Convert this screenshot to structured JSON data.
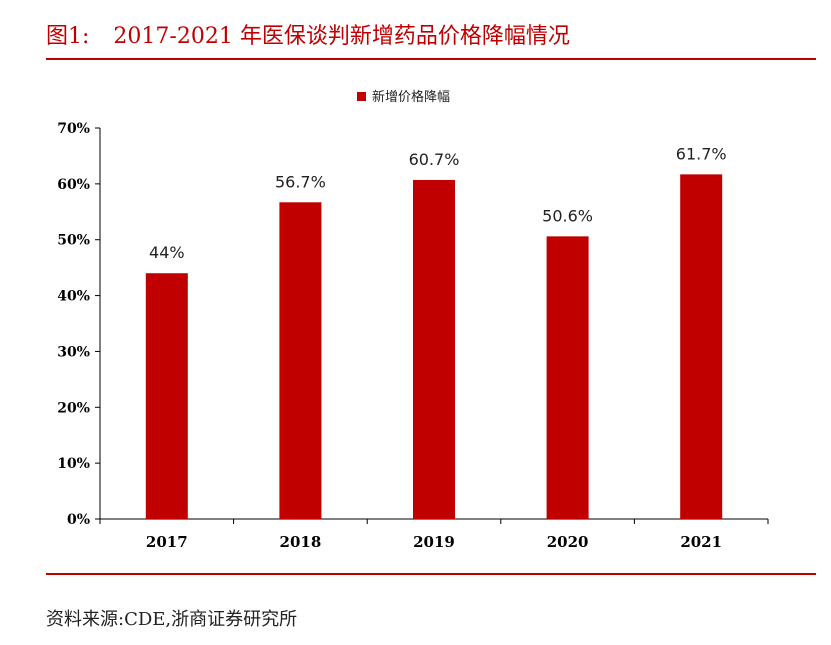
{
  "figure": {
    "label": "图1:",
    "title": "2017-2021 年医保谈判新增药品价格降幅情况"
  },
  "source_text": "资料来源:CDE,浙商证券研究所",
  "colors": {
    "accent": "#c00000",
    "bar": "#c00000",
    "axis": "#000000"
  },
  "chart_data": {
    "type": "bar",
    "title": "2017-2021 年医保谈判新增药品价格降幅情况",
    "xlabel": "",
    "ylabel": "",
    "categories": [
      "2017",
      "2018",
      "2019",
      "2020",
      "2021"
    ],
    "series": [
      {
        "name": "新增价格降幅",
        "values": [
          44,
          56.7,
          60.7,
          50.6,
          61.7
        ],
        "labels": [
          "44%",
          "56.7%",
          "60.7%",
          "50.6%",
          "61.7%"
        ]
      }
    ],
    "ylim": [
      0,
      70
    ],
    "yticks": [
      0,
      10,
      20,
      30,
      40,
      50,
      60,
      70
    ],
    "ytick_labels": [
      "0%",
      "10%",
      "20%",
      "30%",
      "40%",
      "50%",
      "60%",
      "70%"
    ],
    "legend_position": "top-center",
    "grid": false
  }
}
